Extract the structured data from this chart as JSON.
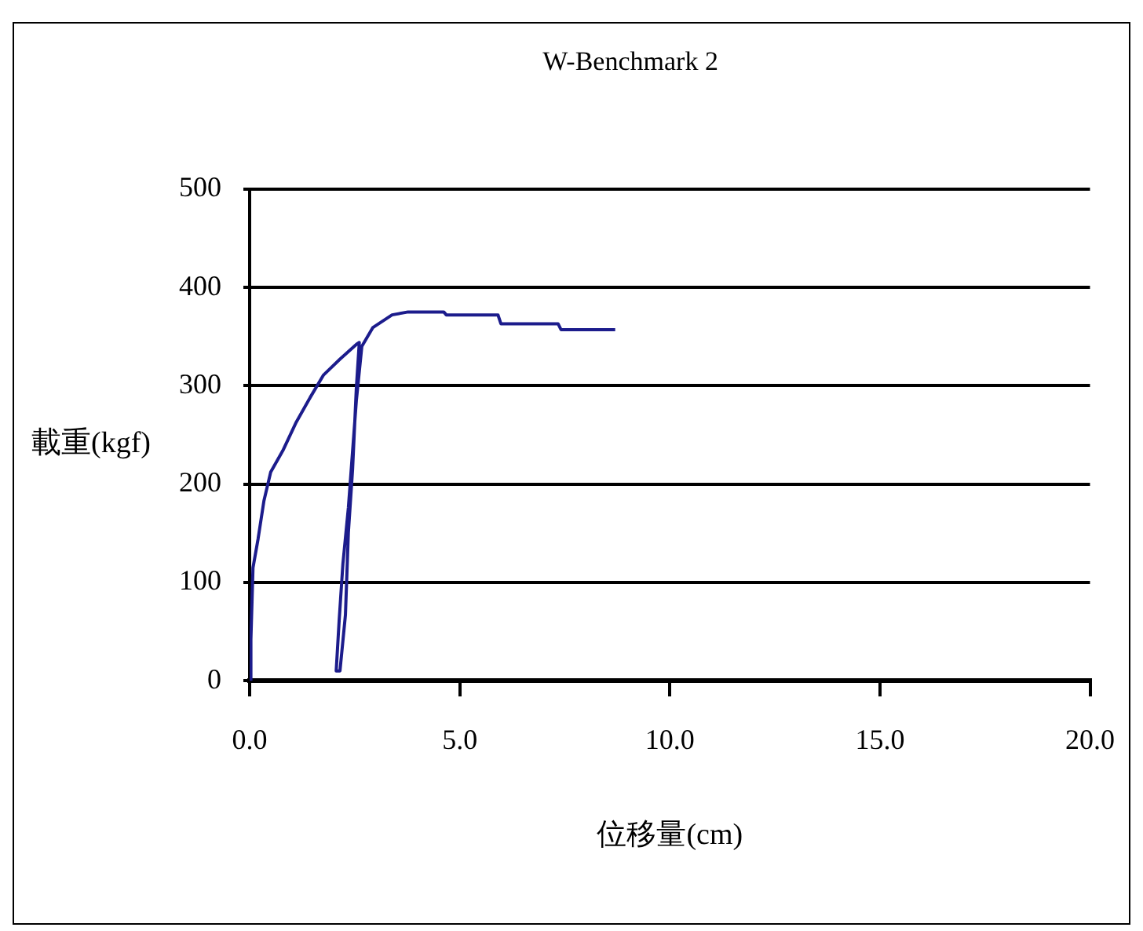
{
  "chart_data": {
    "type": "line",
    "title": "W-Benchmark 2",
    "xlabel": "位移量(cm)",
    "ylabel": "載重(kgf)",
    "series": [
      {
        "color": "#1c1c8c",
        "x": [
          0,
          0.03,
          0.08,
          0.2,
          0.34,
          0.5,
          0.79,
          1.11,
          1.44,
          1.76,
          2.15,
          2.54,
          2.61,
          2.54,
          2.45,
          2.35,
          2.28,
          2.15,
          2.06,
          2.13,
          2.22,
          2.35,
          2.54,
          2.67,
          2.93,
          3.39,
          3.77,
          4.62,
          4.68,
          5.91,
          5.98,
          7.34,
          7.41,
          8.7
        ],
        "values": [
          0,
          42,
          115,
          144,
          183,
          212,
          234,
          263,
          288,
          311,
          327,
          342,
          344,
          298,
          215,
          151,
          67,
          10,
          10,
          61,
          119,
          176,
          285,
          340,
          359,
          372,
          375,
          375,
          372,
          372,
          363,
          363,
          357,
          357
        ]
      }
    ],
    "xlim": [
      0,
      20
    ],
    "xticks": [
      {
        "value": 0,
        "label": "0.0"
      },
      {
        "value": 5,
        "label": "5.0"
      },
      {
        "value": 10,
        "label": "10.0"
      },
      {
        "value": 15,
        "label": "15.0"
      },
      {
        "value": 20,
        "label": "20.0"
      }
    ],
    "ylim": [
      0,
      500
    ],
    "yticks": [
      0,
      100,
      200,
      300,
      400,
      500
    ],
    "grid": "y",
    "legend": false,
    "marker": "none",
    "line_style": "solid"
  }
}
